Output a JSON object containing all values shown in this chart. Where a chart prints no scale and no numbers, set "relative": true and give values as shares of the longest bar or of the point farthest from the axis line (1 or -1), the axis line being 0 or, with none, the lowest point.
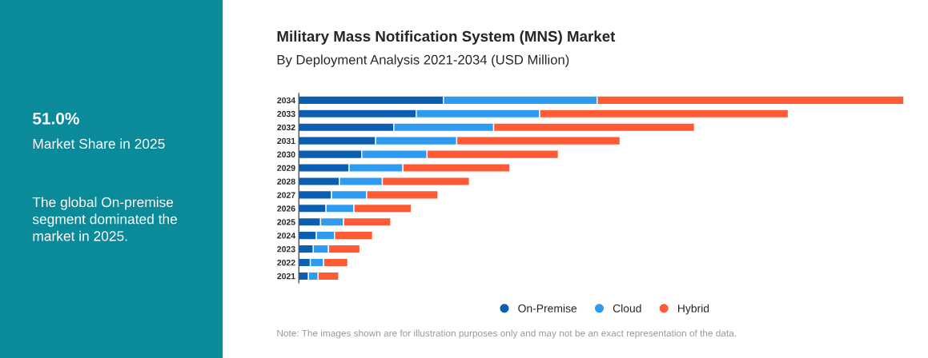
{
  "chart_data": [
    {
      "type": "other",
      "title": "51.0%",
      "subtitle": "Market Share in 2025",
      "annotations": [
        "The global On-premise segment dominated the market in 2025."
      ]
    },
    {
      "type": "bar",
      "orientation": "horizontal",
      "stacked": true,
      "relative": true,
      "title": "Military Mass Notification System (MNS) Market",
      "subtitle": "By Deployment Analysis 2021-2034 (USD Million)",
      "categories": [
        "2034",
        "2033",
        "2032",
        "2031",
        "2030",
        "2029",
        "2028",
        "2027",
        "2026",
        "2025",
        "2024",
        "2023",
        "2022",
        "2021"
      ],
      "series": [
        {
          "name": "On-Premise",
          "color": "#0b5eb0",
          "values": [
            0.239,
            0.194,
            0.157,
            0.127,
            0.104,
            0.083,
            0.067,
            0.054,
            0.045,
            0.036,
            0.029,
            0.024,
            0.019,
            0.016
          ]
        },
        {
          "name": "Cloud",
          "color": "#2e9bf0",
          "values": [
            0.254,
            0.204,
            0.165,
            0.134,
            0.108,
            0.089,
            0.071,
            0.058,
            0.046,
            0.038,
            0.03,
            0.025,
            0.022,
            0.016
          ]
        },
        {
          "name": "Hybrid",
          "color": "#ff5a36",
          "values": [
            0.507,
            0.411,
            0.332,
            0.27,
            0.217,
            0.177,
            0.144,
            0.118,
            0.095,
            0.078,
            0.063,
            0.052,
            0.04,
            0.034
          ]
        }
      ],
      "legend": "bottom",
      "grid": false,
      "annotations": [
        "Note: The images shown are for illustration purposes only and may not be an exact representation of the data."
      ]
    }
  ]
}
